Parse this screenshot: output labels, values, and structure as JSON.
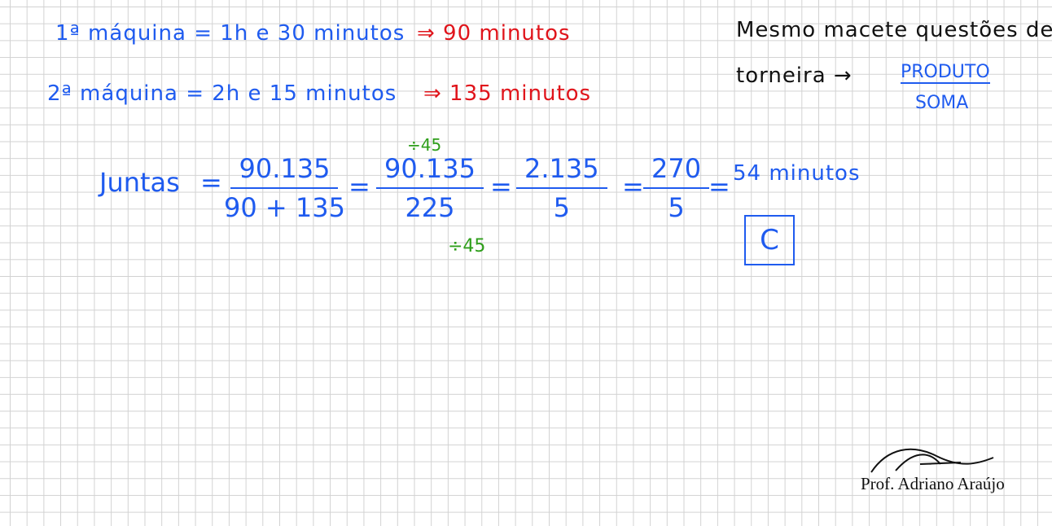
{
  "givens": [
    {
      "label": "1ª máquina = 1h e 30 minutos",
      "result": "⇒ 90 minutos"
    },
    {
      "label": "2ª máquina = 2h e 15 minutos",
      "result": "⇒ 135 minutos"
    }
  ],
  "tip": {
    "lines": [
      "Mesmo macete questões de",
      "torneira →"
    ],
    "numerator": "PRODUTO",
    "denominator": "SOMA"
  },
  "solution": {
    "label": "Juntas",
    "separator": "=",
    "steps": [
      {
        "numerator": "90.135",
        "denominator": "90 + 135"
      },
      {
        "numerator": "90.135",
        "denominator": "225",
        "note_top": "÷45",
        "note_bottom": "÷45"
      },
      {
        "numerator": "2.135",
        "denominator": "5"
      },
      {
        "numerator": "270",
        "denominator": "5"
      }
    ],
    "result": "54 minutos",
    "answer": "C"
  },
  "signature": "Prof. Adriano Araújo"
}
